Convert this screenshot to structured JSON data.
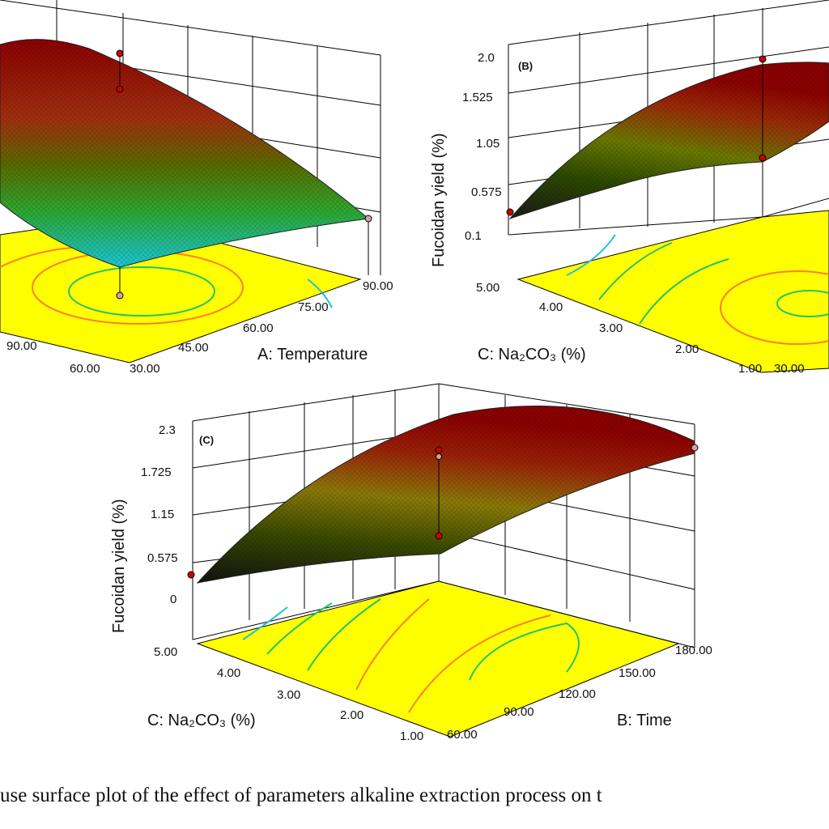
{
  "chart_data": [
    {
      "panel": "",
      "type": "surface",
      "zlabel": "",
      "zticks": [],
      "x1label": "A: Temperature",
      "x1ticks": [
        "30.00",
        "45.00",
        "60.00",
        "75.00",
        "90.00"
      ],
      "x2label": "",
      "x2ticks": [
        "60.00",
        "90.00"
      ]
    },
    {
      "panel": "(B)",
      "type": "surface",
      "zlabel": "Fucoidan yield (%)",
      "zticks": [
        "0.1",
        "0.575",
        "1.05",
        "1.525",
        "2.0"
      ],
      "x1label": "C:  Na₂CO₃ (%)",
      "x1ticks": [
        "1.00",
        "2.00",
        "3.00",
        "4.00",
        "5.00"
      ],
      "x2label": "",
      "x2ticks": [
        "30.00"
      ]
    },
    {
      "panel": "(C)",
      "type": "surface",
      "zlabel": "Fucoidan yield (%)",
      "zticks": [
        "0",
        "0.575",
        "1.15",
        "1.725",
        "2.3"
      ],
      "x1label": "C:   Na₂CO₃ (%)",
      "x1ticks": [
        "1.00",
        "2.00",
        "3.00",
        "4.00",
        "5.00"
      ],
      "x2label": "B: Time",
      "x2ticks": [
        "60.00",
        "90.00",
        "120.00",
        "150.00",
        "180.00"
      ]
    }
  ],
  "caption": "use surface plot of the effect of parameters  alkaline  extraction  process  on t",
  "colors": {
    "surface_high": "#8b0000",
    "surface_mid": "#3a3a00",
    "surface_low_green": "#2fa02f",
    "surface_min_cyan": "#19c6d6",
    "floor": "#ffff00",
    "contour_orange": "#ff7f2a",
    "contour_green": "#22c46a",
    "contour_cyan": "#20c0d8",
    "design_point": "#cc0000"
  }
}
